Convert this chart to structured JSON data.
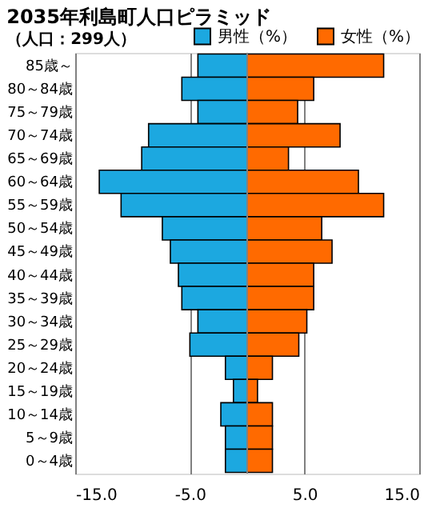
{
  "chart_data": {
    "type": "bar",
    "orientation": "horizontal",
    "title": "2035年利島町人口ピラミッド",
    "subtitle": "（人口：299人）",
    "categories": [
      "85歳～",
      "80～84歳",
      "75～79歳",
      "70～74歳",
      "65～69歳",
      "60～64歳",
      "55～59歳",
      "50～54歳",
      "45～49歳",
      "40～44歳",
      "35～39歳",
      "30～34歳",
      "25～29歳",
      "20～24歳",
      "15～19歳",
      "10～14歳",
      "5～9歳",
      "0～4歳"
    ],
    "series": [
      {
        "name": "男性（%）",
        "color": "#1ca8e0",
        "values": [
          -4.3,
          -5.7,
          -4.3,
          -8.6,
          -9.2,
          -12.9,
          -11.0,
          -7.4,
          -6.7,
          -6.0,
          -5.7,
          -4.3,
          -5.0,
          -1.9,
          -1.2,
          -2.3,
          -1.9,
          -1.9
        ]
      },
      {
        "name": "女性（%）",
        "color": "#ff6a00",
        "values": [
          11.9,
          5.8,
          4.4,
          8.1,
          3.6,
          9.7,
          11.9,
          6.5,
          7.4,
          5.8,
          5.8,
          5.2,
          4.5,
          2.2,
          0.9,
          2.2,
          2.2,
          2.2
        ]
      }
    ],
    "xlim": [
      -15,
      15
    ],
    "xticks": [
      {
        "value": -15,
        "label": "-15.0"
      },
      {
        "value": -5,
        "label": "-5.0"
      },
      {
        "value": 5,
        "label": "5.0"
      },
      {
        "value": 15,
        "label": "15.0"
      }
    ],
    "grid": "x",
    "legend": "top right",
    "stacked": true
  }
}
